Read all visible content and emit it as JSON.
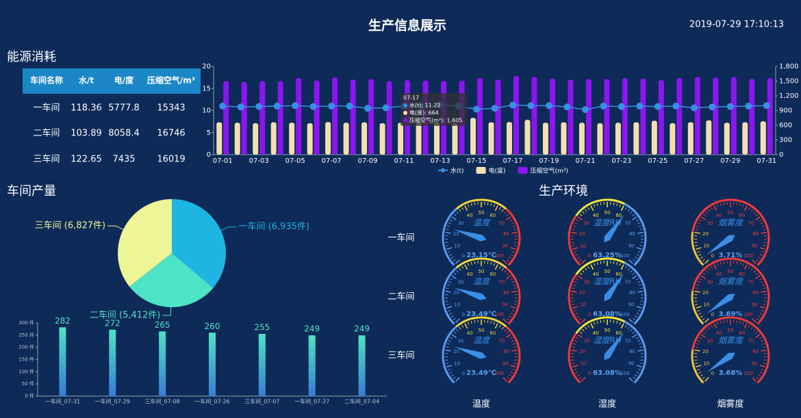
{
  "header": {
    "title": "生产信息展示",
    "datetime": "2019-07-29 17:10:13"
  },
  "energy": {
    "title": "能源消耗",
    "table": {
      "columns": [
        "车间名称",
        "水/t",
        "电/度",
        "压缩空气/m³"
      ],
      "rows": [
        [
          "一车间",
          118.36,
          5777.8,
          15343
        ],
        [
          "二车间",
          103.89,
          8058.4,
          16746
        ],
        [
          "三车间",
          122.65,
          7435,
          16019
        ]
      ]
    }
  },
  "chart_data": [
    {
      "type": "bar-line",
      "categories": [
        "07-01",
        null,
        "07-03",
        null,
        "07-05",
        null,
        "07-07",
        null,
        "07-09",
        null,
        "07-11",
        null,
        "07-13",
        null,
        "07-15",
        null,
        "07-17",
        null,
        "07-19",
        null,
        "07-21",
        null,
        "07-23",
        null,
        "07-25",
        null,
        "07-27",
        null,
        "07-29",
        null,
        "07-31"
      ],
      "series": [
        {
          "name": "水(t)",
          "type": "line",
          "color": "#3a8ee6",
          "values": [
            11.0,
            10.8,
            10.9,
            11.0,
            11.1,
            10.9,
            11.0,
            11.0,
            10.5,
            10.6,
            11.0,
            11.0,
            11.3,
            11.0,
            10.3,
            10.5,
            11.22,
            11.1,
            11.1,
            10.8,
            10.2,
            11.0,
            10.9,
            11.0,
            10.9,
            11.0,
            10.6,
            10.8,
            10.9,
            11.0,
            11.1
          ]
        },
        {
          "name": "电(度)",
          "type": "bar",
          "axis": "y2",
          "color": "#f5deb3",
          "values": [
            660,
            650,
            640,
            660,
            650,
            640,
            665,
            650,
            660,
            640,
            650,
            660,
            655,
            640,
            750,
            660,
            664,
            710,
            650,
            660,
            650,
            640,
            650,
            660,
            690,
            640,
            660,
            700,
            650,
            660,
            680
          ]
        },
        {
          "name": "压缩空气(m³)",
          "type": "bar",
          "axis": "y2",
          "color": "#8a16f0",
          "values": [
            1500,
            1480,
            1500,
            1500,
            1560,
            1510,
            1570,
            1530,
            1540,
            1500,
            1520,
            1510,
            1500,
            1510,
            1560,
            1530,
            1605,
            1580,
            1550,
            1530,
            1540,
            1540,
            1560,
            1550,
            1520,
            1560,
            1580,
            1570,
            1580,
            1540,
            1560
          ]
        }
      ],
      "ylim": [
        0,
        20
      ],
      "yticks": [
        0,
        5,
        10,
        15,
        20
      ],
      "y2lim": [
        0,
        1800
      ],
      "y2ticks": [
        0,
        300,
        600,
        900,
        {
          "value": 1200,
          "label": "1,200"
        },
        {
          "value": 1500,
          "label": "1,500"
        },
        {
          "value": 1800,
          "label": "1,800"
        }
      ],
      "legend": "bottom",
      "tooltip": {
        "title": "07-17",
        "items": [
          "水(t): 11.22",
          "电(度): 664",
          "压缩空气(m³): 1,605"
        ]
      }
    },
    {
      "type": "pie",
      "title": "车间产量",
      "categories": [
        "一车间",
        "二车间",
        "三车间"
      ],
      "values": [
        6935,
        5412,
        6827
      ],
      "value_labels": [
        "一车间 (6,935件)",
        "二车间 (5,412件)",
        "三车间 (6,827件)"
      ],
      "colors": [
        "#1fb5e3",
        "#4de3c6",
        "#eef597"
      ]
    },
    {
      "type": "bar",
      "categories": [
        "一车间_07-31",
        "一车间_07-29",
        "三车间_07-08",
        "一车间_07-26",
        "三车间_07-07",
        "一车间_07-27",
        "二车间_07-04"
      ],
      "values": [
        282,
        272,
        265,
        260,
        255,
        249,
        249
      ],
      "colors": [
        "#4de3c6",
        "#3a7bd5"
      ],
      "ylim": [
        0,
        300
      ],
      "yticks": [
        {
          "value": 0,
          "label": "0 件"
        },
        {
          "value": 50,
          "label": "50 件"
        },
        {
          "value": 100,
          "label": "100 件"
        },
        {
          "value": 150,
          "label": "150 件"
        },
        {
          "value": 200,
          "label": "200 件"
        },
        {
          "value": 250,
          "label": "250 件"
        },
        {
          "value": 300,
          "label": "300 件"
        }
      ]
    },
    {
      "type": "gauge",
      "title": "生产环境",
      "rows": [
        "一车间",
        "二车间",
        "三车间"
      ],
      "lim": [
        0,
        100
      ],
      "ticks": [
        0,
        10,
        20,
        30,
        40,
        50,
        60,
        70,
        80,
        90,
        100
      ],
      "columns": [
        {
          "name": "温度",
          "inner_label": "温度",
          "colors": [
            "#5b9cf0",
            "#f5d33a",
            "#f23a3a"
          ],
          "values": [
            23.15,
            23.49,
            23.49
          ],
          "value_labels": [
            "23.15℃",
            "23.49℃",
            "23.49℃"
          ]
        },
        {
          "name": "湿度",
          "inner_label": "湿度RH",
          "colors": [
            "#f23a3a",
            "#f5e63a",
            "#5b9cf0"
          ],
          "values": [
            63.25,
            63.08,
            63.08
          ],
          "value_labels": [
            "63.25%",
            "63.08%",
            "63.08%"
          ]
        },
        {
          "name": "烟雾度",
          "inner_label": "烟雾度",
          "colors": [
            "#f5c33a",
            "#f23a3a"
          ],
          "values": [
            3.71,
            3.69,
            3.68
          ],
          "value_labels": [
            "3.71%",
            "3.69%",
            "3.68%"
          ]
        }
      ]
    }
  ]
}
